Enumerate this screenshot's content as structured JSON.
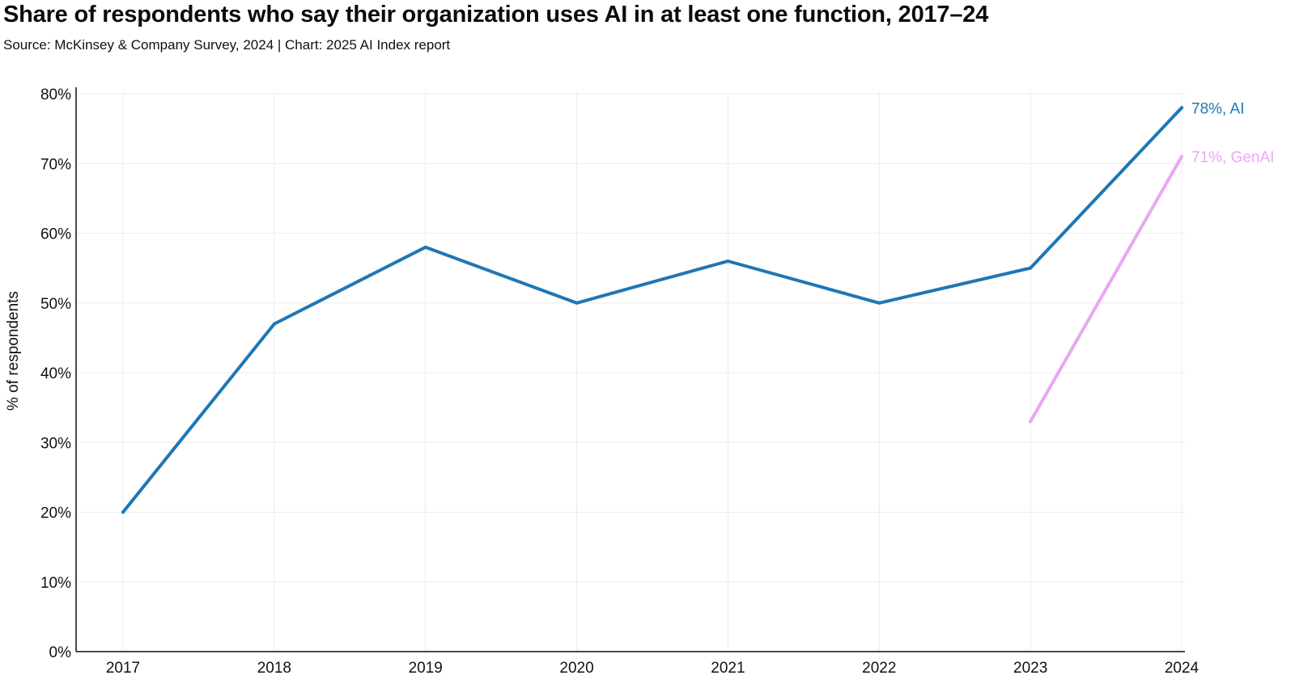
{
  "chart_data": {
    "type": "line",
    "title": "Share of respondents who say their organization uses AI in at least one function, 2017–24",
    "subtitle": "Source: McKinsey & Company Survey, 2024 | Chart: 2025 AI Index report",
    "ylabel": "% of respondents",
    "xlabel": "",
    "x": [
      2017,
      2018,
      2019,
      2020,
      2021,
      2022,
      2023,
      2024
    ],
    "x_tick_labels": [
      "2017",
      "2018",
      "2019",
      "2020",
      "2021",
      "2022",
      "2023",
      "2024"
    ],
    "ylim": [
      0,
      80
    ],
    "y_ticks": [
      0,
      10,
      20,
      30,
      40,
      50,
      60,
      70,
      80
    ],
    "y_tick_labels": [
      "0%",
      "10%",
      "20%",
      "30%",
      "40%",
      "50%",
      "60%",
      "70%",
      "80%"
    ],
    "grid": true,
    "series": [
      {
        "name": "AI",
        "color": "#1f77b4",
        "points": [
          {
            "x": 2017,
            "y": 20
          },
          {
            "x": 2018,
            "y": 47
          },
          {
            "x": 2019,
            "y": 58
          },
          {
            "x": 2020,
            "y": 50
          },
          {
            "x": 2021,
            "y": 56
          },
          {
            "x": 2022,
            "y": 50
          },
          {
            "x": 2023,
            "y": 55
          },
          {
            "x": 2024,
            "y": 78
          }
        ],
        "end_label": "78%, AI"
      },
      {
        "name": "GenAI",
        "color": "#e9a6f4",
        "points": [
          {
            "x": 2023,
            "y": 33
          },
          {
            "x": 2024,
            "y": 71
          }
        ],
        "end_label": "71%, GenAI"
      }
    ]
  }
}
